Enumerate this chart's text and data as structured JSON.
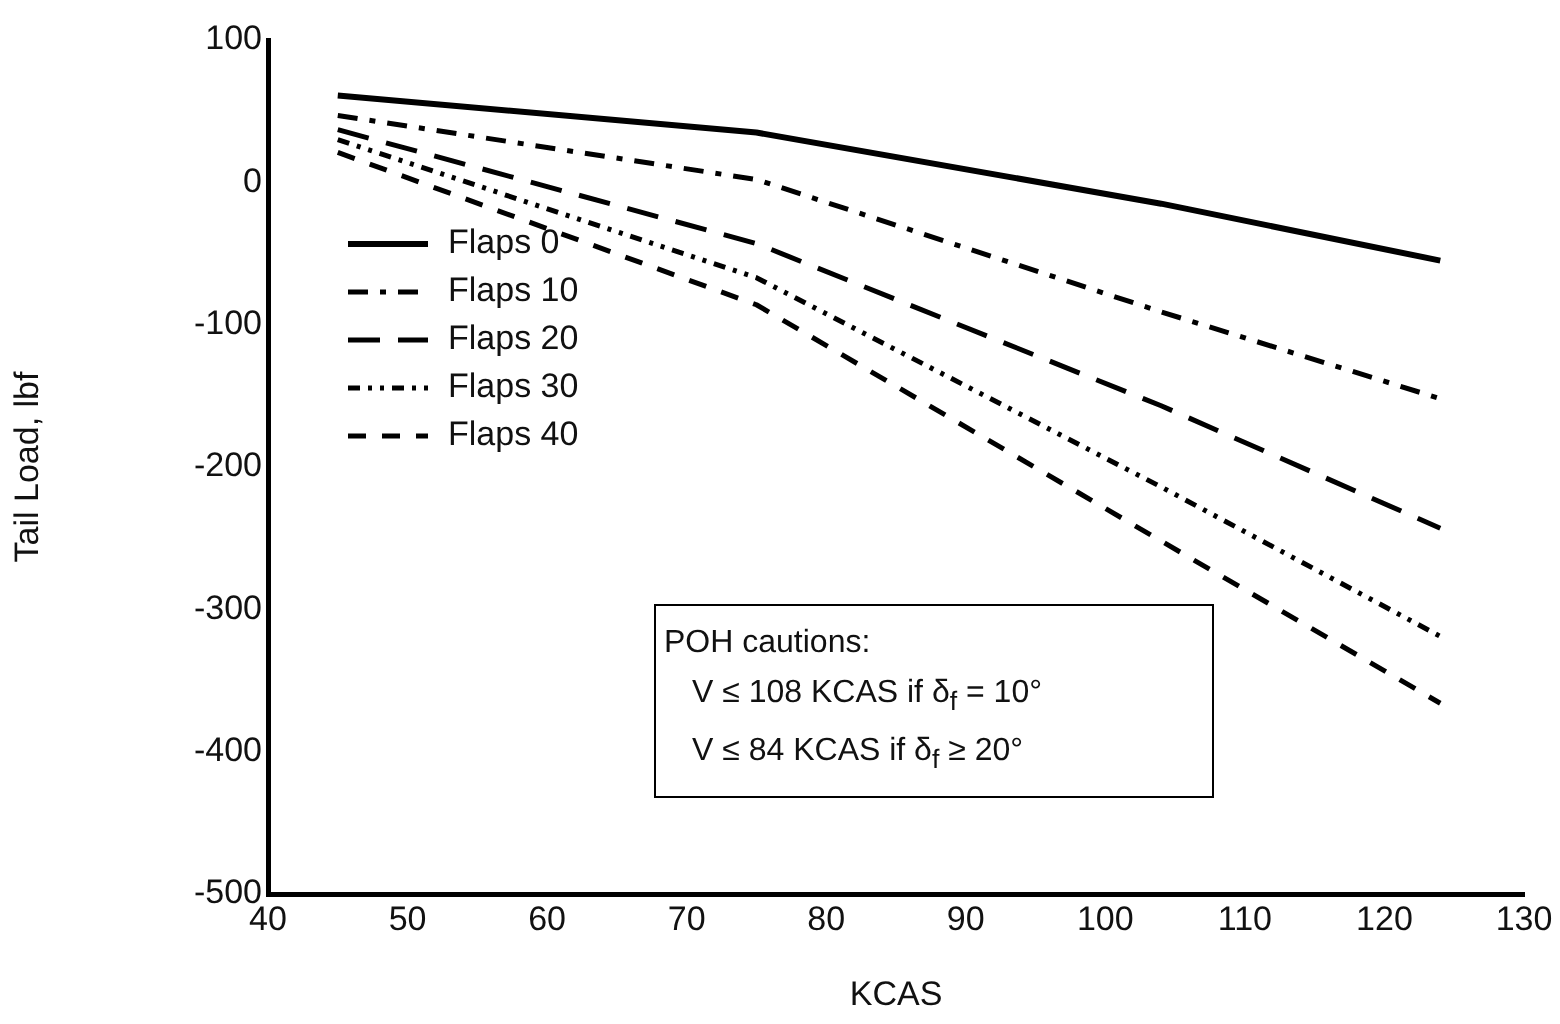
{
  "chart_data": {
    "type": "line",
    "xlabel": "KCAS",
    "ylabel": "Tail Load, lbf",
    "xlim": [
      40,
      130
    ],
    "xticks": [
      40,
      50,
      60,
      70,
      80,
      90,
      100,
      110,
      120,
      130
    ],
    "ylim": [
      -500,
      100
    ],
    "yticks": [
      -500,
      -400,
      -300,
      -200,
      -100,
      0,
      100
    ],
    "grid": false,
    "legend": "left",
    "marker": "none",
    "x": [
      45,
      75,
      104,
      124
    ],
    "series": [
      {
        "name": "Flaps 0",
        "color": "#000000",
        "line_style": "solid",
        "values": [
          61,
          35,
          -15,
          -55
        ]
      },
      {
        "name": "Flaps 10",
        "color": "#000000",
        "line_style": "dashed",
        "values": [
          47,
          2,
          -91,
          -152
        ]
      },
      {
        "name": "Flaps 20",
        "color": "#000000",
        "line_style": "dashed",
        "values": [
          37,
          -43,
          -157,
          -243
        ]
      },
      {
        "name": "Flaps 30",
        "color": "#000000",
        "line_style": "dotted",
        "values": [
          30,
          -67,
          -214,
          -319
        ]
      },
      {
        "name": "Flaps 40",
        "color": "#000000",
        "line_style": "dashed",
        "values": [
          21,
          -86,
          -252,
          -366
        ]
      }
    ],
    "annotations": [
      "POH cautions:",
      "V  ≤ 108 KCAS if δ$_{f}$ = 10°",
      "V  ≤  84 KCAS if δ$_{f}$ ≥ 20°"
    ]
  }
}
